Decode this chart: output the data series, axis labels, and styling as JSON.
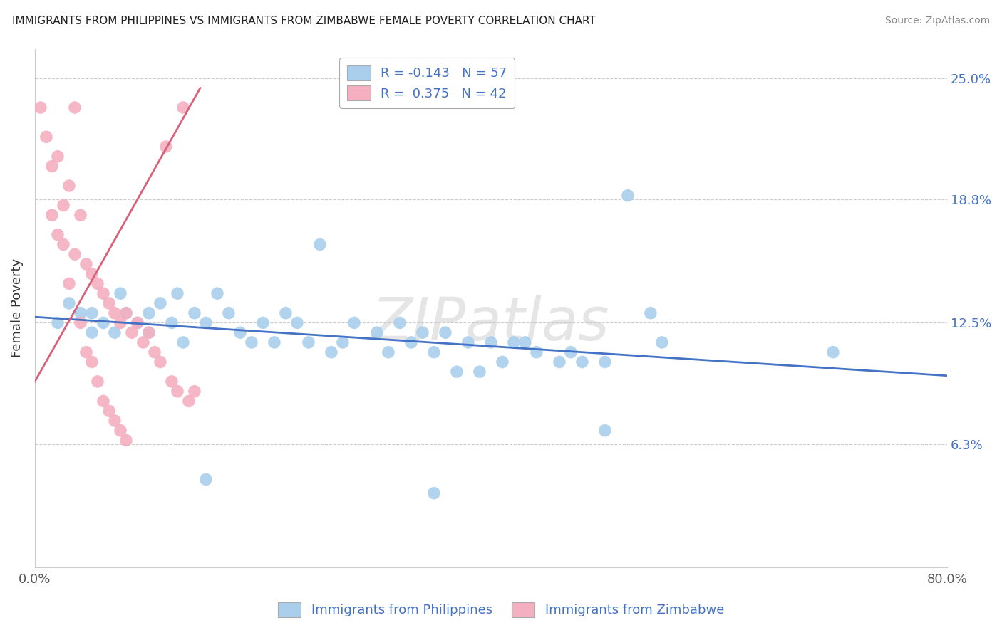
{
  "title": "IMMIGRANTS FROM PHILIPPINES VS IMMIGRANTS FROM ZIMBABWE FEMALE POVERTY CORRELATION CHART",
  "source": "Source: ZipAtlas.com",
  "ylabel": "Female Poverty",
  "yticks": [
    0.0,
    0.063,
    0.125,
    0.188,
    0.25
  ],
  "ytick_labels": [
    "",
    "6.3%",
    "12.5%",
    "18.8%",
    "25.0%"
  ],
  "xticks": [
    0.0,
    0.8
  ],
  "xtick_labels": [
    "0.0%",
    "80.0%"
  ],
  "xlim": [
    0.0,
    0.8
  ],
  "ylim": [
    0.0,
    0.265
  ],
  "watermark": "ZIPatlas",
  "philippines_color": "#aacfec",
  "zimbabwe_color": "#f4afc0",
  "philippines_line_color": "#4472c4",
  "zimbabwe_line_color": "#d9607a",
  "philippines_R": "-0.143",
  "philippines_N": "57",
  "zimbabwe_R": "0.375",
  "zimbabwe_N": "42",
  "legend_label_phil": "Immigrants from Philippines",
  "legend_label_zimb": "Immigrants from Zimbabwe",
  "philippines_points": [
    [
      0.02,
      0.125
    ],
    [
      0.03,
      0.135
    ],
    [
      0.04,
      0.13
    ],
    [
      0.05,
      0.13
    ],
    [
      0.05,
      0.12
    ],
    [
      0.06,
      0.125
    ],
    [
      0.07,
      0.12
    ],
    [
      0.075,
      0.14
    ],
    [
      0.08,
      0.13
    ],
    [
      0.09,
      0.125
    ],
    [
      0.1,
      0.13
    ],
    [
      0.1,
      0.12
    ],
    [
      0.11,
      0.135
    ],
    [
      0.12,
      0.125
    ],
    [
      0.125,
      0.14
    ],
    [
      0.13,
      0.115
    ],
    [
      0.14,
      0.13
    ],
    [
      0.15,
      0.125
    ],
    [
      0.16,
      0.14
    ],
    [
      0.17,
      0.13
    ],
    [
      0.18,
      0.12
    ],
    [
      0.19,
      0.115
    ],
    [
      0.2,
      0.125
    ],
    [
      0.21,
      0.115
    ],
    [
      0.22,
      0.13
    ],
    [
      0.23,
      0.125
    ],
    [
      0.24,
      0.115
    ],
    [
      0.25,
      0.165
    ],
    [
      0.26,
      0.11
    ],
    [
      0.27,
      0.115
    ],
    [
      0.28,
      0.125
    ],
    [
      0.3,
      0.12
    ],
    [
      0.31,
      0.11
    ],
    [
      0.32,
      0.125
    ],
    [
      0.33,
      0.115
    ],
    [
      0.34,
      0.12
    ],
    [
      0.35,
      0.11
    ],
    [
      0.36,
      0.12
    ],
    [
      0.37,
      0.1
    ],
    [
      0.38,
      0.115
    ],
    [
      0.39,
      0.1
    ],
    [
      0.4,
      0.115
    ],
    [
      0.41,
      0.105
    ],
    [
      0.42,
      0.115
    ],
    [
      0.43,
      0.115
    ],
    [
      0.44,
      0.11
    ],
    [
      0.46,
      0.105
    ],
    [
      0.47,
      0.11
    ],
    [
      0.48,
      0.105
    ],
    [
      0.5,
      0.105
    ],
    [
      0.52,
      0.19
    ],
    [
      0.54,
      0.13
    ],
    [
      0.55,
      0.115
    ],
    [
      0.15,
      0.045
    ],
    [
      0.35,
      0.038
    ],
    [
      0.5,
      0.07
    ],
    [
      0.7,
      0.11
    ]
  ],
  "zimbabwe_points": [
    [
      0.005,
      0.235
    ],
    [
      0.01,
      0.22
    ],
    [
      0.015,
      0.205
    ],
    [
      0.015,
      0.18
    ],
    [
      0.02,
      0.21
    ],
    [
      0.02,
      0.17
    ],
    [
      0.025,
      0.185
    ],
    [
      0.025,
      0.165
    ],
    [
      0.03,
      0.195
    ],
    [
      0.03,
      0.145
    ],
    [
      0.035,
      0.235
    ],
    [
      0.035,
      0.16
    ],
    [
      0.04,
      0.18
    ],
    [
      0.04,
      0.125
    ],
    [
      0.045,
      0.155
    ],
    [
      0.045,
      0.11
    ],
    [
      0.05,
      0.15
    ],
    [
      0.05,
      0.105
    ],
    [
      0.055,
      0.145
    ],
    [
      0.055,
      0.095
    ],
    [
      0.06,
      0.14
    ],
    [
      0.06,
      0.085
    ],
    [
      0.065,
      0.135
    ],
    [
      0.065,
      0.08
    ],
    [
      0.07,
      0.13
    ],
    [
      0.07,
      0.075
    ],
    [
      0.075,
      0.125
    ],
    [
      0.075,
      0.07
    ],
    [
      0.08,
      0.13
    ],
    [
      0.08,
      0.065
    ],
    [
      0.085,
      0.12
    ],
    [
      0.09,
      0.125
    ],
    [
      0.095,
      0.115
    ],
    [
      0.1,
      0.12
    ],
    [
      0.105,
      0.11
    ],
    [
      0.11,
      0.105
    ],
    [
      0.115,
      0.215
    ],
    [
      0.12,
      0.095
    ],
    [
      0.125,
      0.09
    ],
    [
      0.13,
      0.235
    ],
    [
      0.135,
      0.085
    ],
    [
      0.14,
      0.09
    ]
  ]
}
